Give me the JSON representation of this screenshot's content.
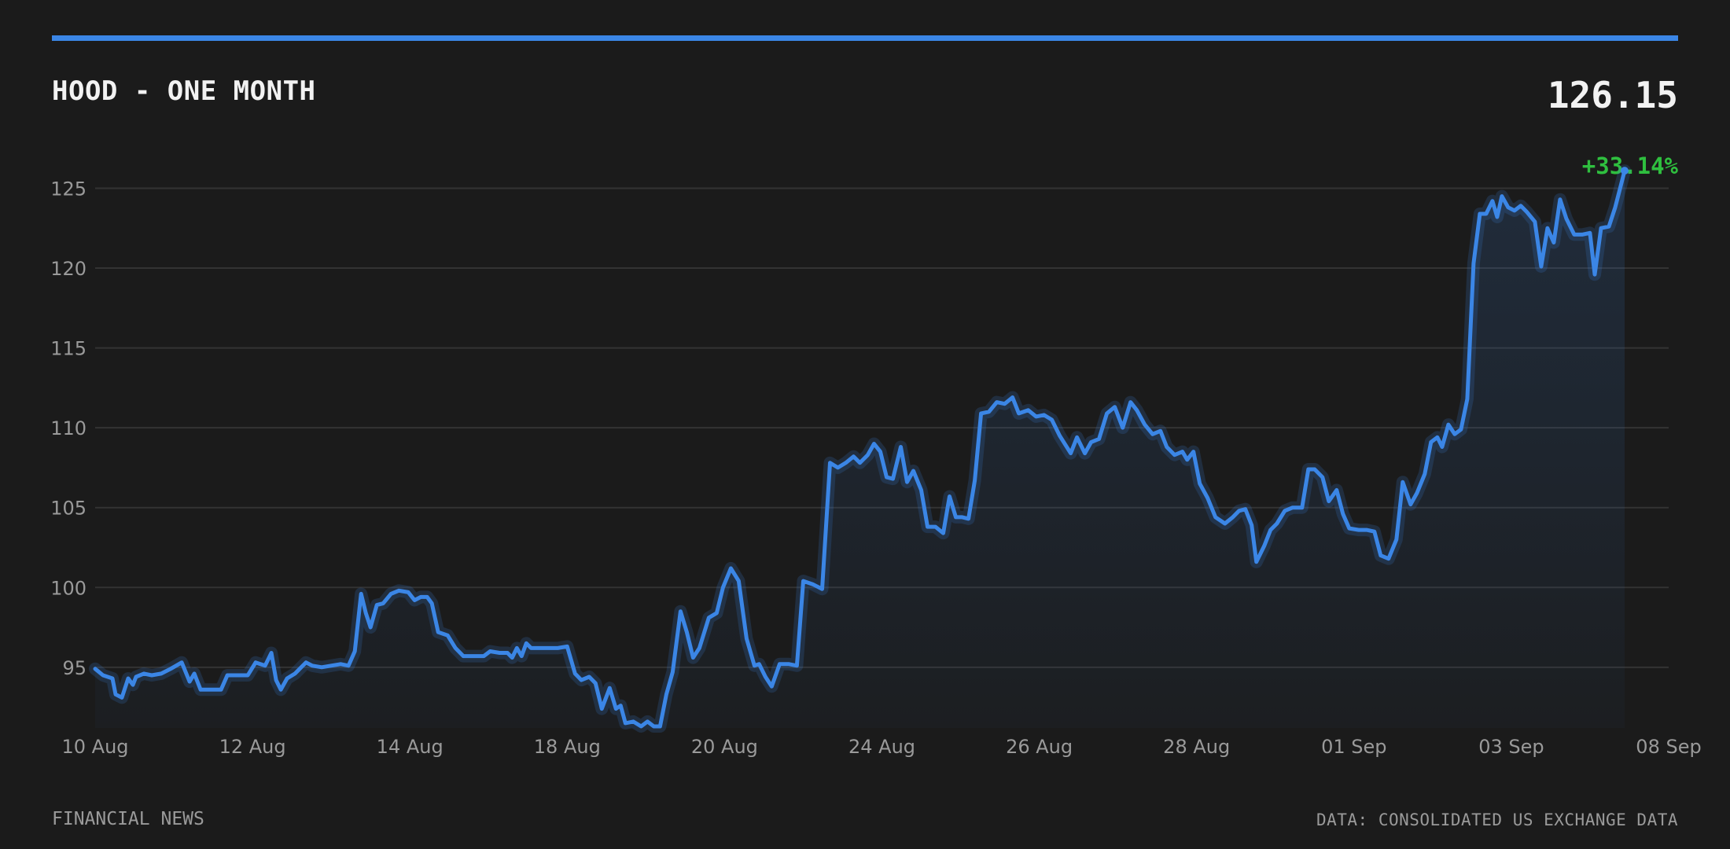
{
  "header": {
    "title": "HOOD - ONE MONTH",
    "price": "126.15",
    "change": "+33.14%"
  },
  "footer": {
    "source_left": "FINANCIAL NEWS",
    "source_right": "DATA: CONSOLIDATED US EXCHANGE DATA"
  },
  "colors": {
    "background": "#1b1b1b",
    "line": "#3b86e6",
    "positive": "#2fbf3f",
    "grid": "#333333",
    "text_muted": "#9a9a9a"
  },
  "chart_data": {
    "type": "area",
    "title": "HOOD - ONE MONTH",
    "xlabel": "",
    "ylabel": "",
    "ylim": [
      91.2,
      126.5
    ],
    "grid": true,
    "yticks": [
      95,
      100,
      105,
      110,
      115,
      120,
      125
    ],
    "xtick_labels": [
      "10 Aug",
      "12 Aug",
      "14 Aug",
      "18 Aug",
      "20 Aug",
      "24 Aug",
      "26 Aug",
      "28 Aug",
      "01 Sep",
      "03 Sep",
      "08 Sep"
    ],
    "x_range": [
      0,
      10
    ],
    "points": [
      [
        0.0,
        94.9
      ],
      [
        0.05,
        94.5
      ],
      [
        0.11,
        94.3
      ],
      [
        0.13,
        93.3
      ],
      [
        0.17,
        93.1
      ],
      [
        0.21,
        94.3
      ],
      [
        0.24,
        93.9
      ],
      [
        0.26,
        94.4
      ],
      [
        0.31,
        94.6
      ],
      [
        0.36,
        94.5
      ],
      [
        0.42,
        94.6
      ],
      [
        0.48,
        94.9
      ],
      [
        0.55,
        95.3
      ],
      [
        0.6,
        94.1
      ],
      [
        0.63,
        94.6
      ],
      [
        0.67,
        93.6
      ],
      [
        0.74,
        93.6
      ],
      [
        0.8,
        93.6
      ],
      [
        0.84,
        94.5
      ],
      [
        0.9,
        94.5
      ],
      [
        0.97,
        94.5
      ],
      [
        1.02,
        95.3
      ],
      [
        1.08,
        95.1
      ],
      [
        1.12,
        95.9
      ],
      [
        1.15,
        94.2
      ],
      [
        1.18,
        93.6
      ],
      [
        1.22,
        94.3
      ],
      [
        1.27,
        94.6
      ],
      [
        1.31,
        95.0
      ],
      [
        1.34,
        95.3
      ],
      [
        1.38,
        95.1
      ],
      [
        1.44,
        95.0
      ],
      [
        1.5,
        95.1
      ],
      [
        1.56,
        95.2
      ],
      [
        1.61,
        95.1
      ],
      [
        1.65,
        96.0
      ],
      [
        1.69,
        99.6
      ],
      [
        1.72,
        98.4
      ],
      [
        1.75,
        97.5
      ],
      [
        1.79,
        98.9
      ],
      [
        1.83,
        99.0
      ],
      [
        1.88,
        99.6
      ],
      [
        1.93,
        99.8
      ],
      [
        1.99,
        99.7
      ],
      [
        2.03,
        99.2
      ],
      [
        2.07,
        99.4
      ],
      [
        2.11,
        99.4
      ],
      [
        2.14,
        99.0
      ],
      [
        2.18,
        97.2
      ],
      [
        2.24,
        97.0
      ],
      [
        2.29,
        96.2
      ],
      [
        2.34,
        95.7
      ],
      [
        2.41,
        95.7
      ],
      [
        2.47,
        95.7
      ],
      [
        2.51,
        96.0
      ],
      [
        2.57,
        95.9
      ],
      [
        2.62,
        95.9
      ],
      [
        2.65,
        95.6
      ],
      [
        2.68,
        96.2
      ],
      [
        2.71,
        95.7
      ],
      [
        2.74,
        96.5
      ],
      [
        2.77,
        96.2
      ],
      [
        2.82,
        96.2
      ],
      [
        2.88,
        96.2
      ],
      [
        2.94,
        96.2
      ],
      [
        3.0,
        96.3
      ],
      [
        3.05,
        94.6
      ],
      [
        3.09,
        94.2
      ],
      [
        3.14,
        94.4
      ],
      [
        3.18,
        94.0
      ],
      [
        3.22,
        92.4
      ],
      [
        3.27,
        93.7
      ],
      [
        3.31,
        92.4
      ],
      [
        3.34,
        92.6
      ],
      [
        3.37,
        91.5
      ],
      [
        3.42,
        91.6
      ],
      [
        3.47,
        91.3
      ],
      [
        3.51,
        91.6
      ],
      [
        3.55,
        91.3
      ],
      [
        3.59,
        91.3
      ],
      [
        3.63,
        93.3
      ],
      [
        3.67,
        94.7
      ],
      [
        3.72,
        98.5
      ],
      [
        3.76,
        97.2
      ],
      [
        3.8,
        95.6
      ],
      [
        3.84,
        96.2
      ],
      [
        3.9,
        98.1
      ],
      [
        3.95,
        98.4
      ],
      [
        3.99,
        100.0
      ],
      [
        4.04,
        101.2
      ],
      [
        4.09,
        100.4
      ],
      [
        4.14,
        96.8
      ],
      [
        4.19,
        95.1
      ],
      [
        4.22,
        95.2
      ],
      [
        4.26,
        94.4
      ],
      [
        4.3,
        93.8
      ],
      [
        4.35,
        95.2
      ],
      [
        4.41,
        95.2
      ],
      [
        4.46,
        95.1
      ],
      [
        4.5,
        100.4
      ],
      [
        4.56,
        100.2
      ],
      [
        4.62,
        99.9
      ],
      [
        4.67,
        107.8
      ],
      [
        4.72,
        107.5
      ],
      [
        4.77,
        107.8
      ],
      [
        4.82,
        108.2
      ],
      [
        4.86,
        107.8
      ],
      [
        4.91,
        108.3
      ],
      [
        4.95,
        109.0
      ],
      [
        4.99,
        108.5
      ],
      [
        5.03,
        106.9
      ],
      [
        5.07,
        106.8
      ],
      [
        5.12,
        108.8
      ],
      [
        5.16,
        106.6
      ],
      [
        5.2,
        107.3
      ],
      [
        5.25,
        106.1
      ],
      [
        5.29,
        103.8
      ],
      [
        5.34,
        103.8
      ],
      [
        5.39,
        103.4
      ],
      [
        5.43,
        105.7
      ],
      [
        5.47,
        104.4
      ],
      [
        5.51,
        104.4
      ],
      [
        5.55,
        104.3
      ],
      [
        5.59,
        106.7
      ],
      [
        5.63,
        110.9
      ],
      [
        5.68,
        111.0
      ],
      [
        5.73,
        111.6
      ],
      [
        5.78,
        111.5
      ],
      [
        5.83,
        111.9
      ],
      [
        5.87,
        110.9
      ],
      [
        5.93,
        111.1
      ],
      [
        5.98,
        110.7
      ],
      [
        6.03,
        110.8
      ],
      [
        6.08,
        110.5
      ],
      [
        6.13,
        109.5
      ],
      [
        6.2,
        108.4
      ],
      [
        6.24,
        109.4
      ],
      [
        6.29,
        108.4
      ],
      [
        6.33,
        109.1
      ],
      [
        6.38,
        109.3
      ],
      [
        6.43,
        110.9
      ],
      [
        6.48,
        111.3
      ],
      [
        6.53,
        110.0
      ],
      [
        6.58,
        111.6
      ],
      [
        6.62,
        111.1
      ],
      [
        6.67,
        110.2
      ],
      [
        6.72,
        109.6
      ],
      [
        6.77,
        109.8
      ],
      [
        6.81,
        108.8
      ],
      [
        6.86,
        108.3
      ],
      [
        6.91,
        108.5
      ],
      [
        6.94,
        108.0
      ],
      [
        6.98,
        108.5
      ],
      [
        7.02,
        106.5
      ],
      [
        7.07,
        105.6
      ],
      [
        7.12,
        104.4
      ],
      [
        7.18,
        104.0
      ],
      [
        7.23,
        104.4
      ],
      [
        7.27,
        104.8
      ],
      [
        7.31,
        104.9
      ],
      [
        7.35,
        103.9
      ],
      [
        7.38,
        101.6
      ],
      [
        7.43,
        102.6
      ],
      [
        7.47,
        103.6
      ],
      [
        7.51,
        104.0
      ],
      [
        7.56,
        104.8
      ],
      [
        7.61,
        105.0
      ],
      [
        7.67,
        105.0
      ],
      [
        7.71,
        107.4
      ],
      [
        7.75,
        107.4
      ],
      [
        7.8,
        106.9
      ],
      [
        7.84,
        105.4
      ],
      [
        7.89,
        106.1
      ],
      [
        7.93,
        104.6
      ],
      [
        7.97,
        103.7
      ],
      [
        8.03,
        103.6
      ],
      [
        8.08,
        103.6
      ],
      [
        8.13,
        103.5
      ],
      [
        8.17,
        102.0
      ],
      [
        8.22,
        101.8
      ],
      [
        8.27,
        103.0
      ],
      [
        8.31,
        106.6
      ],
      [
        8.36,
        105.2
      ],
      [
        8.4,
        105.9
      ],
      [
        8.45,
        107.1
      ],
      [
        8.49,
        109.1
      ],
      [
        8.53,
        109.4
      ],
      [
        8.56,
        108.8
      ],
      [
        8.6,
        110.2
      ],
      [
        8.64,
        109.6
      ],
      [
        8.68,
        109.9
      ],
      [
        8.72,
        111.8
      ],
      [
        8.76,
        120.3
      ],
      [
        8.8,
        123.4
      ],
      [
        8.84,
        123.4
      ],
      [
        8.88,
        124.2
      ],
      [
        8.91,
        123.2
      ],
      [
        8.94,
        124.5
      ],
      [
        8.98,
        123.8
      ],
      [
        9.02,
        123.6
      ],
      [
        9.06,
        123.9
      ],
      [
        9.1,
        123.5
      ],
      [
        9.15,
        122.9
      ],
      [
        9.19,
        120.1
      ],
      [
        9.23,
        122.5
      ],
      [
        9.27,
        121.6
      ],
      [
        9.31,
        124.3
      ],
      [
        9.35,
        123.1
      ],
      [
        9.4,
        122.1
      ],
      [
        9.45,
        122.1
      ],
      [
        9.5,
        122.2
      ],
      [
        9.53,
        119.6
      ],
      [
        9.57,
        122.5
      ],
      [
        9.62,
        122.6
      ],
      [
        9.66,
        123.8
      ],
      [
        9.72,
        126.1
      ]
    ]
  }
}
